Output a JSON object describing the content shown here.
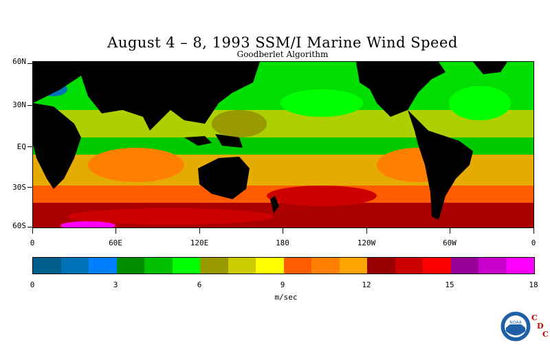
{
  "header": {
    "title": "August 4 – 8, 1993 SSM/I Marine Wind Speed",
    "subtitle": "Goodberlet Algorithm"
  },
  "map": {
    "lat_labels": [
      "60N",
      "30N",
      "EQ",
      "30S",
      "60S"
    ],
    "lon_labels": [
      "0",
      "60E",
      "120E",
      "180",
      "120W",
      "60W",
      "0"
    ],
    "land_color": "#000000",
    "ocean_description_colors": {
      "calm": "#00aa00",
      "moderate": "#cccc00",
      "strong": "#ff6600",
      "very_strong": "#aa0000"
    }
  },
  "colorbar": {
    "colors": [
      "#005e8c",
      "#0073b8",
      "#0080ff",
      "#008c00",
      "#00c000",
      "#00ff00",
      "#999900",
      "#cccc00",
      "#ffff00",
      "#ff5c00",
      "#ff8000",
      "#ffa500",
      "#990000",
      "#cc0000",
      "#ff0000",
      "#990099",
      "#cc00cc",
      "#ff00ff"
    ],
    "tick_labels": [
      "0",
      "3",
      "6",
      "9",
      "12",
      "15",
      "18"
    ],
    "units": "m/sec"
  },
  "logo": {
    "agency": "NOAA",
    "letters": [
      "C",
      "D",
      "C"
    ]
  }
}
